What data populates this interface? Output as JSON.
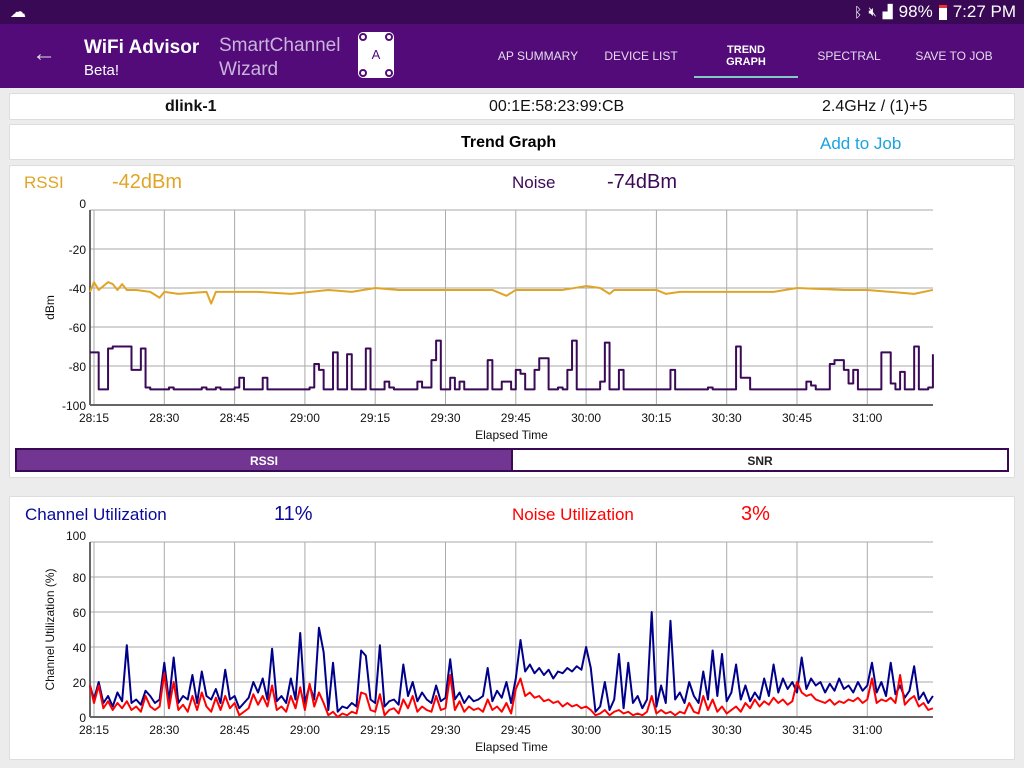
{
  "status_bar": {
    "time": "7:27 PM",
    "battery": "98%",
    "icons": [
      "cloud-icon",
      "bluetooth-icon",
      "mute-icon",
      "signal-icon",
      "battery-icon"
    ]
  },
  "app_bar": {
    "title": "WiFi Advisor",
    "subtitle": "Beta!",
    "wizard_line1": "SmartChannel",
    "wizard_line2": "Wizard",
    "wizard_icon_letter": "A",
    "tabs": [
      {
        "label": "AP SUMMARY"
      },
      {
        "label": "DEVICE LIST"
      },
      {
        "label": "TREND GRAPH",
        "active": true
      },
      {
        "label": "SPECTRAL"
      },
      {
        "label": "SAVE TO JOB"
      }
    ]
  },
  "ap": {
    "name": "dlink-1",
    "bssid": "00:1E:58:23:99:CB",
    "band": "2.4GHz / (1)+5"
  },
  "trend": {
    "title": "Trend Graph",
    "add_to_job": "Add to Job"
  },
  "colors": {
    "rssi": "#e0a526",
    "noise": "#3b0a57",
    "channel_util": "#00008b",
    "noise_util": "#ff0000",
    "accent": "#520b78",
    "tab_indicator": "#80cbc4",
    "link": "#1aa3e0"
  },
  "signal": {
    "rssi_label": "RSSI",
    "rssi_value": "-42dBm",
    "noise_label": "Noise",
    "noise_value": "-74dBm",
    "toggle": [
      {
        "label": "RSSI",
        "selected": true
      },
      {
        "label": "SNR",
        "selected": false
      }
    ]
  },
  "utilization": {
    "channel_label": "Channel Utilization",
    "channel_value": "11%",
    "noise_label": "Noise Utilization",
    "noise_value": "3%"
  },
  "chart_data": [
    {
      "type": "line",
      "ylabel": "dBm",
      "xlabel": "Elapsed Time",
      "ylim": [
        -100,
        0
      ],
      "yticks": [
        "0",
        "-20",
        "-40",
        "-60",
        "-80",
        "-100"
      ],
      "xticks": [
        "28:15",
        "28:30",
        "28:45",
        "29:00",
        "29:15",
        "29:30",
        "29:45",
        "30:00",
        "30:15",
        "30:30",
        "30:45",
        "31:00"
      ],
      "xlim": [
        "28:14",
        "31:14"
      ],
      "grid": true,
      "series": [
        {
          "name": "RSSI",
          "color": "#e0a526",
          "points": [
            [
              "28:14",
              -42
            ],
            [
              "28:15",
              -37
            ],
            [
              "28:16",
              -41
            ],
            [
              "28:18",
              -37
            ],
            [
              "28:19",
              -38
            ],
            [
              "28:20",
              -41
            ],
            [
              "28:21",
              -38
            ],
            [
              "28:22",
              -41
            ],
            [
              "28:24",
              -41
            ],
            [
              "28:27",
              -42
            ],
            [
              "28:29",
              -45
            ],
            [
              "28:30",
              -42
            ],
            [
              "28:33",
              -43
            ],
            [
              "28:39",
              -42
            ],
            [
              "28:40",
              -48
            ],
            [
              "28:41",
              -42
            ],
            [
              "28:50",
              -42
            ],
            [
              "28:57",
              -43
            ],
            [
              "29:05",
              -41
            ],
            [
              "29:10",
              -42
            ],
            [
              "29:15",
              -40
            ],
            [
              "29:20",
              -41
            ],
            [
              "29:30",
              -41
            ],
            [
              "29:40",
              -41
            ],
            [
              "29:43",
              -44
            ],
            [
              "29:45",
              -41
            ],
            [
              "29:55",
              -41
            ],
            [
              "30:00",
              -39
            ],
            [
              "30:03",
              -40
            ],
            [
              "30:05",
              -43
            ],
            [
              "30:06",
              -41
            ],
            [
              "30:15",
              -41
            ],
            [
              "30:17",
              -43
            ],
            [
              "30:20",
              -42
            ],
            [
              "30:30",
              -42
            ],
            [
              "30:40",
              -42
            ],
            [
              "30:45",
              -40
            ],
            [
              "30:55",
              -41
            ],
            [
              "31:00",
              -41
            ],
            [
              "31:05",
              -42
            ],
            [
              "31:10",
              -43
            ],
            [
              "31:14",
              -41
            ]
          ]
        },
        {
          "name": "Noise",
          "color": "#3b0a57",
          "step": true,
          "points": [
            [
              "28:14",
              -73
            ],
            [
              "28:16",
              -92
            ],
            [
              "28:18",
              -71
            ],
            [
              "28:19",
              -70
            ],
            [
              "28:23",
              -82
            ],
            [
              "28:25",
              -71
            ],
            [
              "28:26",
              -91
            ],
            [
              "28:27",
              -92
            ],
            [
              "28:31",
              -91
            ],
            [
              "28:32",
              -92
            ],
            [
              "28:38",
              -91
            ],
            [
              "28:39",
              -92
            ],
            [
              "28:41",
              -91
            ],
            [
              "28:42",
              -92
            ],
            [
              "28:45",
              -91
            ],
            [
              "28:46",
              -86
            ],
            [
              "28:47",
              -92
            ],
            [
              "28:51",
              -86
            ],
            [
              "28:52",
              -92
            ],
            [
              "29:01",
              -91
            ],
            [
              "29:02",
              -79
            ],
            [
              "29:03",
              -82
            ],
            [
              "29:04",
              -92
            ],
            [
              "29:06",
              -73
            ],
            [
              "29:07",
              -92
            ],
            [
              "29:09",
              -74
            ],
            [
              "29:10",
              -92
            ],
            [
              "29:13",
              -71
            ],
            [
              "29:14",
              -92
            ],
            [
              "29:17",
              -88
            ],
            [
              "29:18",
              -91
            ],
            [
              "29:19",
              -92
            ],
            [
              "29:24",
              -88
            ],
            [
              "29:25",
              -91
            ],
            [
              "29:27",
              -77
            ],
            [
              "29:28",
              -67
            ],
            [
              "29:29",
              -92
            ],
            [
              "29:31",
              -86
            ],
            [
              "29:32",
              -92
            ],
            [
              "29:33",
              -88
            ],
            [
              "29:34",
              -92
            ],
            [
              "29:39",
              -77
            ],
            [
              "29:40",
              -92
            ],
            [
              "29:42",
              -88
            ],
            [
              "29:44",
              -92
            ],
            [
              "29:45",
              -82
            ],
            [
              "29:46",
              -84
            ],
            [
              "29:47",
              -92
            ],
            [
              "29:49",
              -82
            ],
            [
              "29:50",
              -76
            ],
            [
              "29:52",
              -92
            ],
            [
              "29:54",
              -91
            ],
            [
              "29:55",
              -92
            ],
            [
              "29:56",
              -82
            ],
            [
              "29:57",
              -67
            ],
            [
              "29:58",
              -92
            ],
            [
              "30:03",
              -88
            ],
            [
              "30:04",
              -68
            ],
            [
              "30:05",
              -92
            ],
            [
              "30:07",
              -82
            ],
            [
              "30:08",
              -92
            ],
            [
              "30:18",
              -82
            ],
            [
              "30:19",
              -92
            ],
            [
              "30:26",
              -91
            ],
            [
              "30:27",
              -92
            ],
            [
              "30:32",
              -70
            ],
            [
              "30:33",
              -86
            ],
            [
              "30:35",
              -92
            ],
            [
              "30:47",
              -88
            ],
            [
              "30:48",
              -90
            ],
            [
              "30:49",
              -92
            ],
            [
              "30:52",
              -79
            ],
            [
              "30:53",
              -77
            ],
            [
              "30:55",
              -82
            ],
            [
              "30:56",
              -89
            ],
            [
              "30:57",
              -82
            ],
            [
              "30:58",
              -92
            ],
            [
              "31:03",
              -73
            ],
            [
              "31:05",
              -89
            ],
            [
              "31:06",
              -92
            ],
            [
              "31:07",
              -83
            ],
            [
              "31:08",
              -92
            ],
            [
              "31:10",
              -70
            ],
            [
              "31:11",
              -92
            ],
            [
              "31:13",
              -91
            ],
            [
              "31:14",
              -74
            ]
          ]
        }
      ]
    },
    {
      "type": "line",
      "ylabel": "Channel Utilization (%)",
      "xlabel": "Elapsed Time",
      "ylim": [
        0,
        100
      ],
      "yticks": [
        "100",
        "80",
        "60",
        "40",
        "20",
        "0"
      ],
      "xticks": [
        "28:15",
        "28:30",
        "28:45",
        "29:00",
        "29:15",
        "29:30",
        "29:45",
        "30:00",
        "30:15",
        "30:30",
        "30:45",
        "31:00"
      ],
      "xlim": [
        "28:14",
        "31:14"
      ],
      "grid": true,
      "series": [
        {
          "name": "Channel Utilization",
          "color": "#00008b",
          "start": "28:14",
          "interval_s": 1,
          "values": [
            18,
            10,
            20,
            8,
            12,
            6,
            14,
            9,
            41,
            8,
            10,
            7,
            15,
            12,
            8,
            10,
            31,
            9,
            34,
            8,
            12,
            10,
            24,
            8,
            26,
            12,
            10,
            16,
            8,
            27,
            10,
            12,
            5,
            8,
            11,
            20,
            14,
            22,
            10,
            39,
            9,
            12,
            8,
            22,
            10,
            48,
            8,
            18,
            10,
            51,
            37,
            4,
            31,
            3,
            6,
            5,
            8,
            6,
            38,
            35,
            10,
            8,
            41,
            6,
            9,
            10,
            7,
            30,
            12,
            20,
            9,
            14,
            10,
            8,
            18,
            9,
            11,
            33,
            10,
            14,
            8,
            12,
            9,
            10,
            12,
            28,
            9,
            15,
            11,
            20,
            8,
            22,
            44,
            26,
            30,
            25,
            28,
            24,
            27,
            22,
            26,
            25,
            28,
            26,
            29,
            27,
            40,
            28,
            3,
            6,
            20,
            4,
            10,
            36,
            5,
            31,
            8,
            12,
            5,
            10,
            60,
            6,
            18,
            8,
            55,
            10,
            14,
            8,
            20,
            12,
            8,
            26,
            10,
            38,
            12,
            36,
            9,
            14,
            30,
            10,
            18,
            9,
            14,
            10,
            22,
            12,
            30,
            14,
            22,
            16,
            20,
            14,
            34,
            16,
            22,
            18,
            20,
            14,
            19,
            15,
            22,
            16,
            18,
            14,
            20,
            15,
            18,
            31,
            14,
            20,
            12,
            31,
            13,
            18,
            11,
            15,
            29,
            10,
            14,
            8,
            12
          ]
        },
        {
          "name": "Noise Utilization",
          "color": "#ff0000",
          "start": "28:14",
          "interval_s": 1,
          "values": [
            18,
            8,
            18,
            5,
            9,
            4,
            8,
            5,
            9,
            4,
            6,
            3,
            12,
            6,
            4,
            6,
            25,
            5,
            20,
            4,
            7,
            3,
            12,
            4,
            14,
            6,
            3,
            11,
            4,
            12,
            5,
            8,
            1,
            3,
            5,
            13,
            7,
            12,
            6,
            18,
            4,
            6,
            3,
            12,
            5,
            17,
            4,
            19,
            6,
            14,
            8,
            1,
            3,
            0,
            2,
            1,
            3,
            2,
            14,
            13,
            4,
            3,
            13,
            1,
            4,
            5,
            2,
            10,
            5,
            12,
            3,
            6,
            4,
            3,
            12,
            4,
            5,
            24,
            4,
            9,
            3,
            6,
            4,
            5,
            3,
            10,
            4,
            6,
            3,
            8,
            2,
            16,
            22,
            12,
            14,
            11,
            12,
            9,
            10,
            8,
            9,
            6,
            8,
            6,
            7,
            5,
            6,
            4,
            1,
            2,
            4,
            1,
            3,
            4,
            2,
            3,
            1,
            2,
            1,
            3,
            12,
            2,
            4,
            2,
            3,
            1,
            3,
            2,
            8,
            3,
            2,
            12,
            4,
            10,
            3,
            6,
            2,
            4,
            6,
            3,
            8,
            5,
            10,
            6,
            9,
            7,
            11,
            8,
            10,
            7,
            9,
            20,
            14,
            12,
            13,
            10,
            9,
            8,
            10,
            7,
            9,
            8,
            10,
            9,
            11,
            8,
            10,
            22,
            8,
            10,
            9,
            11,
            8,
            24,
            7,
            10,
            12,
            6,
            8,
            4,
            5
          ]
        }
      ]
    }
  ]
}
